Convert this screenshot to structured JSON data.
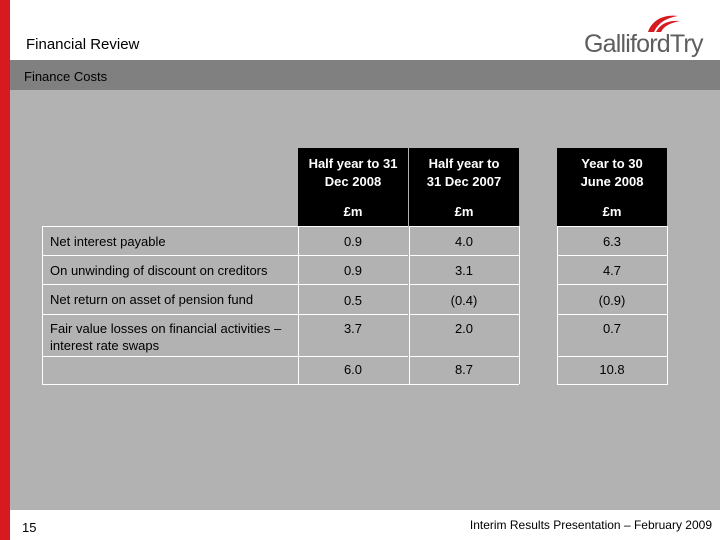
{
  "header": {
    "title": "Financial Review",
    "logo_text": "GallifordTry"
  },
  "subheader": {
    "title": "Finance Costs"
  },
  "table": {
    "col_headers": [
      "Half year to  31 Dec 2008",
      "Half year to 31 Dec 2007",
      "Year  to 30 June 2008"
    ],
    "units": [
      "£m",
      "£m",
      "£m"
    ],
    "rows": [
      {
        "label": "Net interest payable",
        "values": [
          "0.9",
          "4.0",
          "6.3"
        ]
      },
      {
        "label": "On unwinding of discount on creditors",
        "values": [
          "0.9",
          "3.1",
          "4.7"
        ]
      },
      {
        "label": "Net return on asset of pension fund",
        "values": [
          "0.5",
          "(0.4)",
          "(0.9)"
        ]
      },
      {
        "label": "Fair value losses on financial activities – interest rate swaps",
        "values": [
          "3.7",
          "2.0",
          "0.7"
        ]
      }
    ],
    "totals": [
      "6.0",
      "8.7",
      "10.8"
    ]
  },
  "footer": {
    "page_number": "15",
    "text": "Interim Results Presentation – February 2009"
  },
  "colors": {
    "brand_red": "#d71920",
    "panel_grey": "#b2b2b2",
    "bar_grey": "#808080",
    "header_black": "#000000"
  }
}
